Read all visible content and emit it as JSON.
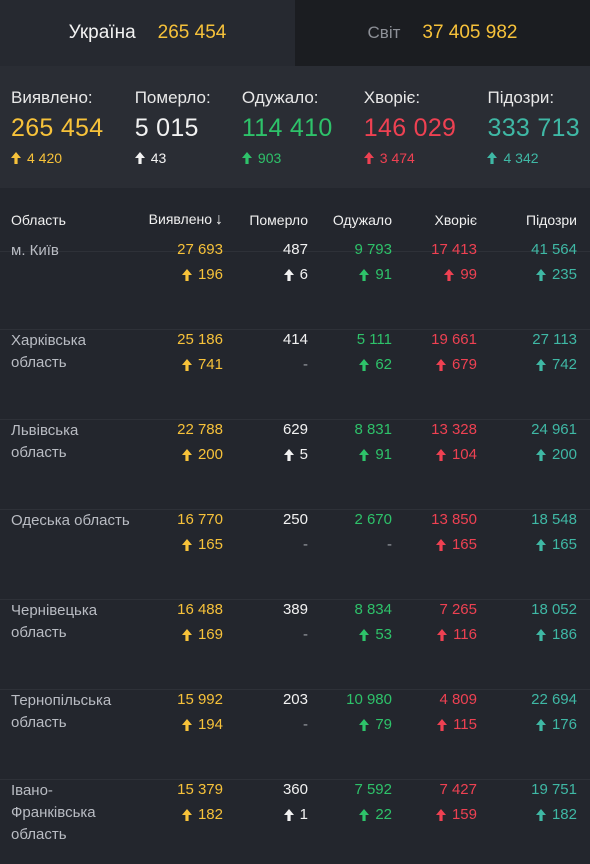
{
  "tabs": [
    {
      "label": "Україна",
      "value": "265 454"
    },
    {
      "label": "Світ",
      "value": "37 405 982"
    }
  ],
  "summary": [
    {
      "title": "Виявлено:",
      "value": "265 454",
      "delta": "4 420",
      "color": "yellow"
    },
    {
      "title": "Померло:",
      "value": "5 015",
      "delta": "43",
      "color": "white"
    },
    {
      "title": "Одужало:",
      "value": "114 410",
      "delta": "903",
      "color": "green"
    },
    {
      "title": "Хворіє:",
      "value": "146 029",
      "delta": "3 474",
      "color": "red"
    },
    {
      "title": "Підозри:",
      "value": "333 713",
      "delta": "4 342",
      "color": "teal"
    }
  ],
  "table": {
    "headers": [
      "Область",
      "Виявлено",
      "Померло",
      "Одужало",
      "Хворіє",
      "Підозри"
    ],
    "rows": [
      {
        "name": "м. Київ",
        "cols": [
          [
            "27 693",
            "196"
          ],
          [
            "487",
            "6"
          ],
          [
            "9 793",
            "91"
          ],
          [
            "17 413",
            "99"
          ],
          [
            "41 564",
            "235"
          ]
        ]
      },
      {
        "name": "Харківська область",
        "cols": [
          [
            "25 186",
            "741"
          ],
          [
            "414",
            "-"
          ],
          [
            "5 111",
            "62"
          ],
          [
            "19 661",
            "679"
          ],
          [
            "27 113",
            "742"
          ]
        ]
      },
      {
        "name": "Львівська область",
        "cols": [
          [
            "22 788",
            "200"
          ],
          [
            "629",
            "5"
          ],
          [
            "8 831",
            "91"
          ],
          [
            "13 328",
            "104"
          ],
          [
            "24 961",
            "200"
          ]
        ]
      },
      {
        "name": "Одеська область",
        "cols": [
          [
            "16 770",
            "165"
          ],
          [
            "250",
            "-"
          ],
          [
            "2 670",
            "-"
          ],
          [
            "13 850",
            "165"
          ],
          [
            "18 548",
            "165"
          ]
        ]
      },
      {
        "name": "Чернівецька область",
        "cols": [
          [
            "16 488",
            "169"
          ],
          [
            "389",
            "-"
          ],
          [
            "8 834",
            "53"
          ],
          [
            "7 265",
            "116"
          ],
          [
            "18 052",
            "186"
          ]
        ]
      },
      {
        "name": "Тернопільська область",
        "cols": [
          [
            "15 992",
            "194"
          ],
          [
            "203",
            "-"
          ],
          [
            "10 980",
            "79"
          ],
          [
            "4 809",
            "115"
          ],
          [
            "22 694",
            "176"
          ]
        ]
      },
      {
        "name": "Івано-Франківська область",
        "cols": [
          [
            "15 379",
            "182"
          ],
          [
            "360",
            "1"
          ],
          [
            "7 592",
            "22"
          ],
          [
            "7 427",
            "159"
          ],
          [
            "19 751",
            "182"
          ]
        ]
      }
    ]
  },
  "colors": {
    "yellow": "#f7c23a",
    "white": "#f2f2f2",
    "green": "#2ec26a",
    "red": "#ee4152",
    "teal": "#3fb8a5"
  },
  "icons": {
    "delta": "arrow-up-icon",
    "sort": "arrow-down-icon"
  }
}
